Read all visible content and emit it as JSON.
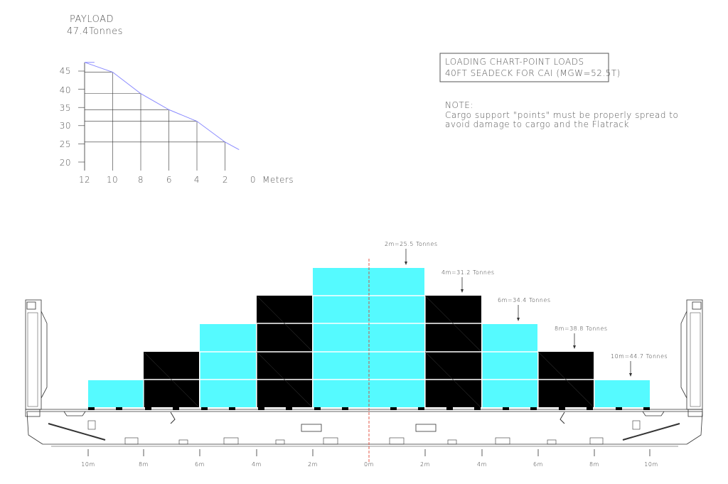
{
  "payload": {
    "title": "PAYLOAD",
    "value": "47.4Tonnes"
  },
  "graph": {
    "y_ticks": [
      "45",
      "40",
      "35",
      "30",
      "25",
      "20"
    ],
    "x_ticks": [
      "12",
      "10",
      "8",
      "6",
      "4",
      "2",
      "0"
    ],
    "x_unit": "Meters"
  },
  "chart_data": {
    "type": "line",
    "title": "PAYLOAD",
    "subtitle": "47.4Tonnes",
    "xlabel": "Meters",
    "ylabel": "",
    "x": [
      12,
      10,
      8,
      6,
      4,
      2,
      1
    ],
    "y": [
      47.4,
      44.7,
      38.8,
      34.4,
      31.2,
      25.5,
      23.4
    ],
    "xlim": [
      12,
      0
    ],
    "ylim": [
      20,
      47.4
    ],
    "color": "#8a8aff"
  },
  "info_box": {
    "line1": "LOADING CHART-POINT LOADS",
    "line2": "40FT SEADECK FOR CAI (MGW=52.5T)"
  },
  "note": {
    "title": "NOTE:",
    "line1": "Cargo support \"points\" must be properly spread to",
    "line2": "avoid damage to cargo and the Flatrack"
  },
  "load_labels": [
    {
      "text": "2m=25.5 Tonnes"
    },
    {
      "text": "4m=31.2 Tonnes"
    },
    {
      "text": "6m=34.4 Tonnes"
    },
    {
      "text": "8m=38.8 Tonnes"
    },
    {
      "text": "10m=44.7 Tonnes"
    }
  ],
  "bottom_scale": [
    "10m",
    "8m",
    "6m",
    "4m",
    "2m",
    "0m",
    "2m",
    "4m",
    "6m",
    "8m",
    "10m"
  ],
  "colors": {
    "cyan": "#55faff",
    "black": "#000000",
    "red_axis": "#e0301e",
    "curve": "#8a8aff"
  }
}
